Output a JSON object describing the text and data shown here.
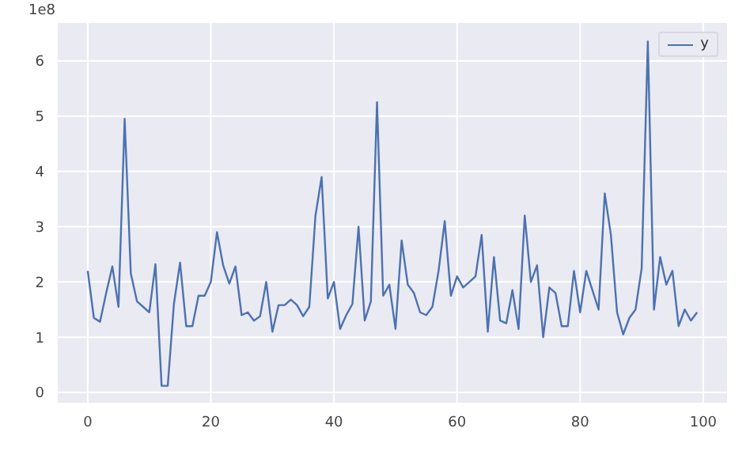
{
  "chart_data": {
    "type": "line",
    "x": [
      0,
      1,
      2,
      3,
      4,
      5,
      6,
      7,
      8,
      9,
      10,
      11,
      12,
      13,
      14,
      15,
      16,
      17,
      18,
      19,
      20,
      21,
      22,
      23,
      24,
      25,
      26,
      27,
      28,
      29,
      30,
      31,
      32,
      33,
      34,
      35,
      36,
      37,
      38,
      39,
      40,
      41,
      42,
      43,
      44,
      45,
      46,
      47,
      48,
      49,
      50,
      51,
      52,
      53,
      54,
      55,
      56,
      57,
      58,
      59,
      60,
      61,
      62,
      63,
      64,
      65,
      66,
      67,
      68,
      69,
      70,
      71,
      72,
      73,
      74,
      75,
      76,
      77,
      78,
      79,
      80,
      81,
      82,
      83,
      84,
      85,
      86,
      87,
      88,
      89,
      90,
      91,
      92,
      93,
      94,
      95,
      96,
      97,
      98,
      99
    ],
    "series": [
      {
        "name": "y",
        "color": "#4c72b0",
        "values": [
          2.2,
          1.35,
          1.28,
          1.8,
          2.28,
          1.55,
          4.95,
          2.15,
          1.65,
          1.55,
          1.45,
          2.32,
          0.12,
          0.12,
          1.6,
          2.35,
          1.2,
          1.2,
          1.75,
          1.75,
          2.0,
          2.9,
          2.3,
          1.97,
          2.28,
          1.4,
          1.45,
          1.3,
          1.38,
          2.0,
          1.1,
          1.58,
          1.58,
          1.68,
          1.58,
          1.38,
          1.55,
          3.2,
          3.9,
          1.7,
          2.0,
          1.15,
          1.4,
          1.6,
          3.0,
          1.3,
          1.65,
          5.25,
          1.75,
          1.95,
          1.15,
          2.75,
          1.95,
          1.8,
          1.45,
          1.4,
          1.55,
          2.2,
          3.1,
          1.75,
          2.1,
          1.9,
          2.0,
          2.1,
          2.85,
          1.1,
          2.45,
          1.3,
          1.25,
          1.85,
          1.15,
          3.2,
          2.0,
          2.3,
          1.0,
          1.9,
          1.8,
          1.2,
          1.2,
          2.2,
          1.45,
          2.2,
          1.85,
          1.5,
          3.6,
          2.85,
          1.45,
          1.05,
          1.35,
          1.5,
          2.25,
          6.35,
          1.5,
          2.45,
          1.95,
          2.2,
          1.2,
          1.5,
          1.3,
          1.45
        ]
      }
    ],
    "xlim": [
      -5,
      104
    ],
    "xticks": [
      0,
      20,
      40,
      60,
      80,
      100
    ],
    "ylim": [
      -0.2,
      6.7
    ],
    "yticks": [
      0,
      1,
      2,
      3,
      4,
      5,
      6
    ],
    "annotations": [
      "1e8"
    ],
    "grid": true,
    "legend": "top right"
  }
}
